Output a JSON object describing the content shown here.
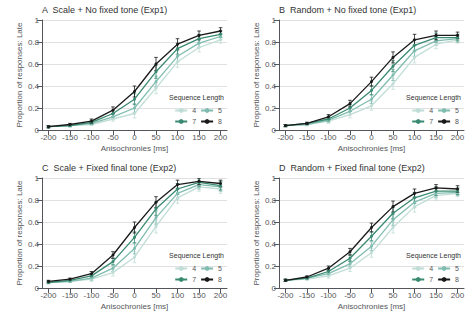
{
  "chart_data": [
    {
      "type": "line",
      "title": "A  Scale + No fixed tone (Exp1)",
      "xlabel": "Anisochronies [ms]",
      "ylabel": "Proportion of responses: Late",
      "x": [
        -200,
        -150,
        -100,
        -50,
        0,
        50,
        100,
        150,
        200
      ],
      "xlim": [
        -215,
        215
      ],
      "xticks": [
        -200,
        -150,
        -100,
        -50,
        0,
        50,
        100,
        150,
        200
      ],
      "ylim": [
        0,
        1
      ],
      "yticks": [
        0,
        0.2,
        0.4,
        0.6,
        0.8,
        1
      ],
      "grid": true,
      "legend": "lower right",
      "legend_title": "Sequence Length",
      "marker": "circle",
      "series": [
        {
          "name": "4",
          "color": "#c0ddd6",
          "values": [
            0.03,
            0.04,
            0.05,
            0.1,
            0.15,
            0.38,
            0.62,
            0.75,
            0.82
          ],
          "err": [
            0.01,
            0.01,
            0.01,
            0.02,
            0.04,
            0.05,
            0.05,
            0.04,
            0.03
          ]
        },
        {
          "name": "5",
          "color": "#80bdb0",
          "values": [
            0.03,
            0.04,
            0.06,
            0.12,
            0.2,
            0.44,
            0.67,
            0.79,
            0.85
          ],
          "err": [
            0.01,
            0.01,
            0.01,
            0.02,
            0.04,
            0.05,
            0.05,
            0.04,
            0.03
          ]
        },
        {
          "name": "7",
          "color": "#3a8a72",
          "values": [
            0.03,
            0.04,
            0.07,
            0.15,
            0.28,
            0.53,
            0.74,
            0.83,
            0.87
          ],
          "err": [
            0.01,
            0.01,
            0.02,
            0.03,
            0.05,
            0.06,
            0.05,
            0.04,
            0.03
          ]
        },
        {
          "name": "8",
          "color": "#1a1a1a",
          "values": [
            0.03,
            0.05,
            0.08,
            0.18,
            0.35,
            0.6,
            0.78,
            0.86,
            0.9
          ],
          "err": [
            0.01,
            0.01,
            0.02,
            0.03,
            0.05,
            0.06,
            0.05,
            0.04,
            0.03
          ]
        }
      ]
    },
    {
      "type": "line",
      "title": "B  Random + No fixed tone (Exp1)",
      "xlabel": "Anisochronies [ms]",
      "ylabel": "Proportion of responses: Late",
      "x": [
        -200,
        -150,
        -100,
        -50,
        0,
        50,
        100,
        150,
        200
      ],
      "xlim": [
        -215,
        215
      ],
      "xticks": [
        -200,
        -150,
        -100,
        -50,
        0,
        50,
        100,
        150,
        200
      ],
      "ylim": [
        0,
        1
      ],
      "yticks": [
        0,
        0.2,
        0.4,
        0.6,
        0.8,
        1
      ],
      "grid": true,
      "legend": "lower right",
      "legend_title": "Sequence Length",
      "marker": "circle",
      "series": [
        {
          "name": "4",
          "color": "#c0ddd6",
          "values": [
            0.04,
            0.05,
            0.08,
            0.14,
            0.22,
            0.42,
            0.66,
            0.78,
            0.82
          ],
          "err": [
            0.01,
            0.01,
            0.02,
            0.03,
            0.04,
            0.05,
            0.05,
            0.04,
            0.03
          ]
        },
        {
          "name": "5",
          "color": "#80bdb0",
          "values": [
            0.04,
            0.05,
            0.09,
            0.17,
            0.28,
            0.5,
            0.72,
            0.81,
            0.83
          ],
          "err": [
            0.01,
            0.01,
            0.02,
            0.03,
            0.04,
            0.05,
            0.05,
            0.04,
            0.03
          ]
        },
        {
          "name": "7",
          "color": "#3a8a72",
          "values": [
            0.04,
            0.06,
            0.1,
            0.2,
            0.36,
            0.58,
            0.77,
            0.84,
            0.84
          ],
          "err": [
            0.01,
            0.01,
            0.02,
            0.03,
            0.04,
            0.05,
            0.05,
            0.04,
            0.03
          ]
        },
        {
          "name": "8",
          "color": "#1a1a1a",
          "values": [
            0.04,
            0.06,
            0.12,
            0.24,
            0.44,
            0.66,
            0.82,
            0.86,
            0.86
          ],
          "err": [
            0.01,
            0.01,
            0.02,
            0.03,
            0.04,
            0.05,
            0.05,
            0.04,
            0.03
          ]
        }
      ]
    },
    {
      "type": "line",
      "title": "C  Scale + Fixed final tone (Exp2)",
      "xlabel": "Anisochronies [ms]",
      "ylabel": "Proportion of responses: Late",
      "x": [
        -200,
        -150,
        -100,
        -50,
        0,
        50,
        100,
        150,
        200
      ],
      "xlim": [
        -215,
        215
      ],
      "xticks": [
        -200,
        -150,
        -100,
        -50,
        0,
        50,
        100,
        150,
        200
      ],
      "ylim": [
        0,
        1
      ],
      "yticks": [
        0,
        0.2,
        0.4,
        0.6,
        0.8,
        1
      ],
      "grid": true,
      "legend": "lower right",
      "legend_title": "Sequence Length",
      "marker": "circle",
      "series": [
        {
          "name": "4",
          "color": "#c0ddd6",
          "values": [
            0.05,
            0.06,
            0.08,
            0.14,
            0.28,
            0.56,
            0.82,
            0.92,
            0.9
          ],
          "err": [
            0.01,
            0.01,
            0.02,
            0.03,
            0.05,
            0.06,
            0.05,
            0.04,
            0.04
          ]
        },
        {
          "name": "5",
          "color": "#80bdb0",
          "values": [
            0.05,
            0.06,
            0.09,
            0.18,
            0.36,
            0.64,
            0.86,
            0.94,
            0.92
          ],
          "err": [
            0.01,
            0.01,
            0.02,
            0.03,
            0.05,
            0.06,
            0.05,
            0.04,
            0.04
          ]
        },
        {
          "name": "7",
          "color": "#3a8a72",
          "values": [
            0.05,
            0.07,
            0.11,
            0.24,
            0.46,
            0.72,
            0.9,
            0.96,
            0.93
          ],
          "err": [
            0.01,
            0.01,
            0.02,
            0.03,
            0.05,
            0.06,
            0.05,
            0.04,
            0.04
          ]
        },
        {
          "name": "8",
          "color": "#1a1a1a",
          "values": [
            0.06,
            0.08,
            0.13,
            0.3,
            0.55,
            0.78,
            0.94,
            0.97,
            0.95
          ],
          "err": [
            0.01,
            0.01,
            0.02,
            0.03,
            0.05,
            0.05,
            0.04,
            0.03,
            0.03
          ]
        }
      ]
    },
    {
      "type": "line",
      "title": "D  Random + Fixed final tone (Exp2)",
      "xlabel": "Anisochronies [ms]",
      "ylabel": "Proportion of responses: Late",
      "x": [
        -200,
        -150,
        -100,
        -50,
        0,
        50,
        100,
        150,
        200
      ],
      "xlim": [
        -215,
        215
      ],
      "xticks": [
        -200,
        -150,
        -100,
        -50,
        0,
        50,
        100,
        150,
        200
      ],
      "ylim": [
        0,
        1
      ],
      "yticks": [
        0,
        0.2,
        0.4,
        0.6,
        0.8,
        1
      ],
      "grid": true,
      "legend": "lower right",
      "legend_title": "Sequence Length",
      "marker": "circle",
      "series": [
        {
          "name": "4",
          "color": "#c0ddd6",
          "values": [
            0.07,
            0.08,
            0.11,
            0.18,
            0.32,
            0.55,
            0.74,
            0.84,
            0.86
          ],
          "err": [
            0.01,
            0.01,
            0.02,
            0.03,
            0.04,
            0.05,
            0.05,
            0.04,
            0.03
          ]
        },
        {
          "name": "5",
          "color": "#80bdb0",
          "values": [
            0.07,
            0.09,
            0.13,
            0.22,
            0.38,
            0.62,
            0.78,
            0.86,
            0.87
          ],
          "err": [
            0.01,
            0.01,
            0.02,
            0.03,
            0.04,
            0.05,
            0.05,
            0.04,
            0.03
          ]
        },
        {
          "name": "7",
          "color": "#3a8a72",
          "values": [
            0.07,
            0.09,
            0.15,
            0.27,
            0.47,
            0.68,
            0.82,
            0.88,
            0.88
          ],
          "err": [
            0.01,
            0.01,
            0.02,
            0.03,
            0.04,
            0.05,
            0.05,
            0.04,
            0.03
          ]
        },
        {
          "name": "8",
          "color": "#1a1a1a",
          "values": [
            0.07,
            0.1,
            0.18,
            0.33,
            0.55,
            0.74,
            0.86,
            0.91,
            0.9
          ],
          "err": [
            0.01,
            0.01,
            0.02,
            0.03,
            0.04,
            0.05,
            0.04,
            0.03,
            0.03
          ]
        }
      ]
    }
  ]
}
